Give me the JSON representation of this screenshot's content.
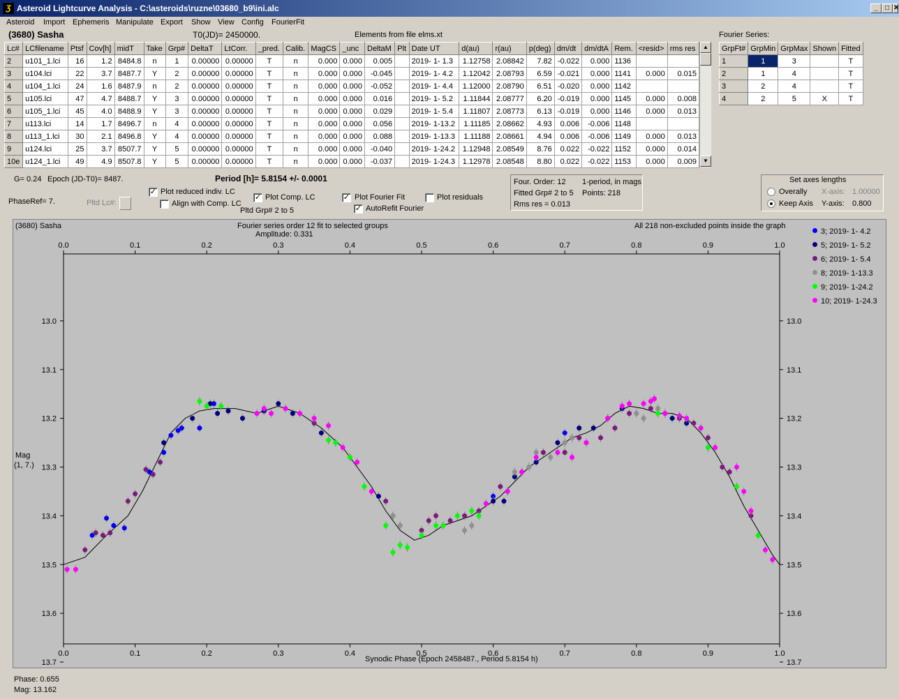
{
  "window": {
    "title": "Asteroid Lightcurve Analysis - C:\\asteroids\\ruzne\\03680_b9\\ini.alc",
    "icon": "Ʒ",
    "btn_min": "_",
    "btn_max": "□",
    "btn_close": "✕"
  },
  "menu": [
    "Asteroid",
    "Import",
    "Ephemeris",
    "Manipulate",
    "Export",
    "Show",
    "View",
    "Config",
    "FourierFit"
  ],
  "header": {
    "asteroid": "(3680) Sasha",
    "t0": "T0(JD)= 2450000.",
    "elements": "Elements from file elms.xt",
    "fourier_label": "Fourier Series:"
  },
  "lc_table": {
    "columns": [
      "Lc#",
      "LCfilename",
      "Ptsf",
      "Cov[h]",
      "midT",
      "Take",
      "Grp#",
      "DeltaT",
      "LtCorr.",
      "_pred.",
      "Calib.",
      "MagCS",
      "_unc",
      "DeltaM",
      "Plt",
      "Date UT",
      "d(au)",
      "r(au)",
      "p(deg)",
      "dm/dt",
      "dm/dtA",
      "Rem.",
      "<resid>",
      "rms res"
    ],
    "rows": [
      [
        "2",
        "u101_1.lci",
        "16",
        "1.2",
        "8484.8",
        "n",
        "1",
        "0.00000",
        "0.00000",
        "T",
        "n",
        "0.000",
        "0.000",
        "0.005",
        "",
        "2019- 1- 1.3",
        "1.12758",
        "2.08842",
        "7.82",
        "-0.022",
        "0.000",
        "1136",
        "",
        ""
      ],
      [
        "3",
        "u104.lci",
        "22",
        "3.7",
        "8487.7",
        "Y",
        "2",
        "0.00000",
        "0.00000",
        "T",
        "n",
        "0.000",
        "0.000",
        "-0.045",
        "",
        "2019- 1- 4.2",
        "1.12042",
        "2.08793",
        "6.59",
        "-0.021",
        "0.000",
        "1141",
        "0.000",
        "0.015"
      ],
      [
        "4",
        "u104_1.lci",
        "24",
        "1.6",
        "8487.9",
        "n",
        "2",
        "0.00000",
        "0.00000",
        "T",
        "n",
        "0.000",
        "0.000",
        "-0.052",
        "",
        "2019- 1- 4.4",
        "1.12000",
        "2.08790",
        "6.51",
        "-0.020",
        "0.000",
        "1142",
        "",
        ""
      ],
      [
        "5",
        "u105.lci",
        "47",
        "4.7",
        "8488.7",
        "Y",
        "3",
        "0.00000",
        "0.00000",
        "T",
        "n",
        "0.000",
        "0.000",
        "0.016",
        "",
        "2019- 1- 5.2",
        "1.11844",
        "2.08777",
        "6.20",
        "-0.019",
        "0.000",
        "1145",
        "0.000",
        "0.008"
      ],
      [
        "6",
        "u105_1.lci",
        "45",
        "4.0",
        "8488.9",
        "Y",
        "3",
        "0.00000",
        "0.00000",
        "T",
        "n",
        "0.000",
        "0.000",
        "0.029",
        "",
        "2019- 1- 5.4",
        "1.11807",
        "2.08773",
        "6.13",
        "-0.019",
        "0.000",
        "1146",
        "0.000",
        "0.013"
      ],
      [
        "7",
        "u113.lci",
        "14",
        "1.7",
        "8496.7",
        "n",
        "4",
        "0.00000",
        "0.00000",
        "T",
        "n",
        "0.000",
        "0.000",
        "0.056",
        "",
        "2019- 1-13.2",
        "1.11185",
        "2.08662",
        "4.93",
        "0.006",
        "-0.006",
        "1148",
        "",
        ""
      ],
      [
        "8",
        "u113_1.lci",
        "30",
        "2.1",
        "8496.8",
        "Y",
        "4",
        "0.00000",
        "0.00000",
        "T",
        "n",
        "0.000",
        "0.000",
        "0.088",
        "",
        "2019- 1-13.3",
        "1.11188",
        "2.08661",
        "4.94",
        "0.006",
        "-0.006",
        "1149",
        "0.000",
        "0.013"
      ],
      [
        "9",
        "u124.lci",
        "25",
        "3.7",
        "8507.7",
        "Y",
        "5",
        "0.00000",
        "0.00000",
        "T",
        "n",
        "0.000",
        "0.000",
        "-0.040",
        "",
        "2019- 1-24.2",
        "1.12948",
        "2.08549",
        "8.76",
        "0.022",
        "-0.022",
        "1152",
        "0.000",
        "0.014"
      ],
      [
        "10e",
        "u124_1.lci",
        "49",
        "4.9",
        "8507.8",
        "Y",
        "5",
        "0.00000",
        "0.00000",
        "T",
        "n",
        "0.000",
        "0.000",
        "-0.037",
        "",
        "2019- 1-24.3",
        "1.12978",
        "2.08548",
        "8.80",
        "0.022",
        "-0.022",
        "1153",
        "0.000",
        "0.009"
      ]
    ]
  },
  "fourier_table": {
    "columns": [
      "GrpFt#",
      "GrpMin",
      "GrpMax",
      "Shown",
      "Fitted"
    ],
    "rows": [
      [
        "1",
        "1",
        "3",
        "",
        "T"
      ],
      [
        "2",
        "1",
        "4",
        "",
        "T"
      ],
      [
        "3",
        "2",
        "4",
        "",
        "T"
      ],
      [
        "4",
        "2",
        "5",
        "X",
        "T"
      ]
    ]
  },
  "controls": {
    "g": "G= 0.24",
    "epoch": "Epoch (JD-T0)= 8487.",
    "period": "Period [h]= 5.8154 +/- 0.0001",
    "phaseref": "PhaseRef= 7.",
    "pltd_lc": "Pltd Lc#:",
    "plot_reduced": "Plot reduced indiv. LC",
    "align_comp": "Align with Comp. LC",
    "plot_comp": "Plot Comp. LC",
    "pltd_grp": "Pltd Grp#  2  to  5",
    "plot_fourier": "Plot Fourier Fit",
    "autorefit": "AutoRefit Fourier",
    "plot_residuals": "Plot residuals",
    "four_order": "Four. Order: 12",
    "one_period": "1-period, in mags",
    "fitted_grp": "Fitted Grp# 2 to 5",
    "points": "Points: 218",
    "rms": "Rms res     = 0.013",
    "axes_title": "Set axes lengths",
    "overally": "Overally",
    "keep_axis": "Keep Axis",
    "xaxis_label": "X-axis:",
    "xaxis_val": "1.00000",
    "yaxis_label": "Y-axis:",
    "yaxis_val": "0.800"
  },
  "plot": {
    "title_left": "(3680) Sasha",
    "title_center": "Fourier series order 12 fit to selected groups",
    "amplitude": "Amplitude: 0.331",
    "title_right": "All 218 non-excluded points inside the graph",
    "ylabel1": "Mag",
    "ylabel2": "(1, 7.)",
    "xlabel": "Synodic Phase (Epoch 2458487., Period 5.8154 h)",
    "status_phase": "Phase:  0.655",
    "status_mag": "Mag:   13.162"
  },
  "chart_data": {
    "type": "scatter",
    "xlim": [
      0,
      1.0
    ],
    "ylim": [
      13.7,
      12.9
    ],
    "x_ticks": [
      "0.0",
      "0.1",
      "0.2",
      "0.3",
      "0.4",
      "0.5",
      "0.6",
      "0.7",
      "0.8",
      "0.9",
      "1.0"
    ],
    "y_ticks": [
      "13.0",
      "13.1",
      "13.2",
      "13.3",
      "13.4",
      "13.5",
      "13.6",
      "13.7"
    ],
    "fit_curve": [
      [
        0.0,
        13.5
      ],
      [
        0.03,
        13.485
      ],
      [
        0.06,
        13.44
      ],
      [
        0.09,
        13.4
      ],
      [
        0.11,
        13.35
      ],
      [
        0.13,
        13.29
      ],
      [
        0.15,
        13.23
      ],
      [
        0.17,
        13.2
      ],
      [
        0.19,
        13.185
      ],
      [
        0.21,
        13.18
      ],
      [
        0.24,
        13.18
      ],
      [
        0.27,
        13.19
      ],
      [
        0.3,
        13.175
      ],
      [
        0.33,
        13.19
      ],
      [
        0.36,
        13.22
      ],
      [
        0.39,
        13.26
      ],
      [
        0.41,
        13.3
      ],
      [
        0.43,
        13.34
      ],
      [
        0.45,
        13.39
      ],
      [
        0.47,
        13.43
      ],
      [
        0.49,
        13.45
      ],
      [
        0.51,
        13.44
      ],
      [
        0.53,
        13.42
      ],
      [
        0.55,
        13.41
      ],
      [
        0.57,
        13.4
      ],
      [
        0.59,
        13.38
      ],
      [
        0.61,
        13.36
      ],
      [
        0.63,
        13.33
      ],
      [
        0.65,
        13.3
      ],
      [
        0.67,
        13.28
      ],
      [
        0.69,
        13.26
      ],
      [
        0.71,
        13.24
      ],
      [
        0.73,
        13.23
      ],
      [
        0.75,
        13.215
      ],
      [
        0.77,
        13.19
      ],
      [
        0.79,
        13.175
      ],
      [
        0.81,
        13.18
      ],
      [
        0.83,
        13.19
      ],
      [
        0.85,
        13.19
      ],
      [
        0.87,
        13.2
      ],
      [
        0.89,
        13.23
      ],
      [
        0.91,
        13.27
      ],
      [
        0.93,
        13.32
      ],
      [
        0.95,
        13.38
      ],
      [
        0.97,
        13.43
      ],
      [
        0.99,
        13.48
      ],
      [
        1.0,
        13.5
      ]
    ],
    "series": [
      {
        "name": "3; 2019- 1- 4.2",
        "color": "#0000ff",
        "points": [
          [
            0.04,
            13.44
          ],
          [
            0.06,
            13.405
          ],
          [
            0.07,
            13.42
          ],
          [
            0.085,
            13.425
          ],
          [
            0.12,
            13.31
          ],
          [
            0.14,
            13.27
          ],
          [
            0.15,
            13.235
          ],
          [
            0.16,
            13.225
          ],
          [
            0.165,
            13.22
          ],
          [
            0.19,
            13.22
          ],
          [
            0.21,
            13.17
          ],
          [
            0.6,
            13.36
          ],
          [
            0.7,
            13.23
          ]
        ]
      },
      {
        "name": "5; 2019- 1- 5.2",
        "color": "#000080",
        "points": [
          [
            0.14,
            13.25
          ],
          [
            0.18,
            13.2
          ],
          [
            0.205,
            13.17
          ],
          [
            0.215,
            13.19
          ],
          [
            0.23,
            13.185
          ],
          [
            0.25,
            13.2
          ],
          [
            0.28,
            13.185
          ],
          [
            0.3,
            13.17
          ],
          [
            0.32,
            13.19
          ],
          [
            0.36,
            13.23
          ],
          [
            0.44,
            13.36
          ],
          [
            0.6,
            13.37
          ],
          [
            0.615,
            13.37
          ],
          [
            0.63,
            13.32
          ],
          [
            0.66,
            13.29
          ],
          [
            0.69,
            13.25
          ],
          [
            0.72,
            13.22
          ],
          [
            0.74,
            13.22
          ],
          [
            0.76,
            13.2
          ],
          [
            0.78,
            13.18
          ],
          [
            0.85,
            13.2
          ],
          [
            0.87,
            13.21
          ]
        ]
      },
      {
        "name": "6; 2019- 1- 5.4",
        "color": "#7b1a7b",
        "points": [
          [
            0.03,
            13.47
          ],
          [
            0.045,
            13.435
          ],
          [
            0.055,
            13.44
          ],
          [
            0.065,
            13.435
          ],
          [
            0.09,
            13.37
          ],
          [
            0.1,
            13.355
          ],
          [
            0.115,
            13.305
          ],
          [
            0.125,
            13.315
          ],
          [
            0.135,
            13.29
          ],
          [
            0.35,
            13.21
          ],
          [
            0.45,
            13.37
          ],
          [
            0.46,
            13.4
          ],
          [
            0.5,
            13.43
          ],
          [
            0.51,
            13.41
          ],
          [
            0.52,
            13.4
          ],
          [
            0.54,
            13.41
          ],
          [
            0.56,
            13.4
          ],
          [
            0.58,
            13.39
          ],
          [
            0.61,
            13.34
          ],
          [
            0.62,
            13.35
          ],
          [
            0.64,
            13.31
          ],
          [
            0.67,
            13.27
          ],
          [
            0.7,
            13.27
          ],
          [
            0.72,
            13.24
          ],
          [
            0.73,
            13.25
          ],
          [
            0.75,
            13.24
          ],
          [
            0.77,
            13.22
          ],
          [
            0.79,
            13.19
          ],
          [
            0.82,
            13.18
          ],
          [
            0.84,
            13.19
          ],
          [
            0.86,
            13.2
          ],
          [
            0.88,
            13.21
          ],
          [
            0.9,
            13.24
          ],
          [
            0.92,
            13.3
          ],
          [
            0.93,
            13.31
          ],
          [
            0.96,
            13.4
          ]
        ]
      },
      {
        "name": "8; 2019- 1-13.3",
        "color": "#909090",
        "points": [
          [
            0.46,
            13.4
          ],
          [
            0.47,
            13.42
          ],
          [
            0.56,
            13.43
          ],
          [
            0.57,
            13.42
          ],
          [
            0.63,
            13.31
          ],
          [
            0.65,
            13.3
          ],
          [
            0.66,
            13.27
          ],
          [
            0.68,
            13.28
          ],
          [
            0.69,
            13.27
          ],
          [
            0.7,
            13.25
          ],
          [
            0.71,
            13.24
          ],
          [
            0.8,
            13.19
          ],
          [
            0.81,
            13.2
          ],
          [
            0.83,
            13.18
          ]
        ]
      },
      {
        "name": "9; 2019- 1-24.2",
        "color": "#00ff00",
        "points": [
          [
            0.19,
            13.165
          ],
          [
            0.2,
            13.175
          ],
          [
            0.22,
            13.175
          ],
          [
            0.37,
            13.245
          ],
          [
            0.38,
            13.25
          ],
          [
            0.4,
            13.28
          ],
          [
            0.42,
            13.34
          ],
          [
            0.45,
            13.42
          ],
          [
            0.46,
            13.475
          ],
          [
            0.47,
            13.46
          ],
          [
            0.48,
            13.465
          ],
          [
            0.5,
            13.44
          ],
          [
            0.52,
            13.42
          ],
          [
            0.53,
            13.42
          ],
          [
            0.55,
            13.4
          ],
          [
            0.57,
            13.39
          ],
          [
            0.58,
            13.4
          ],
          [
            0.83,
            13.19
          ],
          [
            0.9,
            13.26
          ],
          [
            0.94,
            13.34
          ],
          [
            0.97,
            13.44
          ]
        ]
      },
      {
        "name": "10; 2019- 1-24.3",
        "color": "#ff00ff",
        "points": [
          [
            0.005,
            13.51
          ],
          [
            0.017,
            13.51
          ],
          [
            0.27,
            13.19
          ],
          [
            0.28,
            13.18
          ],
          [
            0.29,
            13.19
          ],
          [
            0.31,
            13.18
          ],
          [
            0.33,
            13.19
          ],
          [
            0.35,
            13.2
          ],
          [
            0.37,
            13.215
          ],
          [
            0.39,
            13.26
          ],
          [
            0.41,
            13.29
          ],
          [
            0.43,
            13.35
          ],
          [
            0.59,
            13.375
          ],
          [
            0.62,
            13.35
          ],
          [
            0.64,
            13.31
          ],
          [
            0.66,
            13.28
          ],
          [
            0.69,
            13.27
          ],
          [
            0.71,
            13.28
          ],
          [
            0.73,
            13.25
          ],
          [
            0.76,
            13.2
          ],
          [
            0.78,
            13.175
          ],
          [
            0.79,
            13.17
          ],
          [
            0.81,
            13.17
          ],
          [
            0.82,
            13.165
          ],
          [
            0.825,
            13.16
          ],
          [
            0.84,
            13.19
          ],
          [
            0.86,
            13.195
          ],
          [
            0.87,
            13.2
          ],
          [
            0.89,
            13.22
          ],
          [
            0.91,
            13.26
          ],
          [
            0.94,
            13.3
          ],
          [
            0.95,
            13.35
          ],
          [
            0.96,
            13.39
          ],
          [
            0.98,
            13.47
          ],
          [
            0.99,
            13.49
          ]
        ]
      }
    ]
  }
}
